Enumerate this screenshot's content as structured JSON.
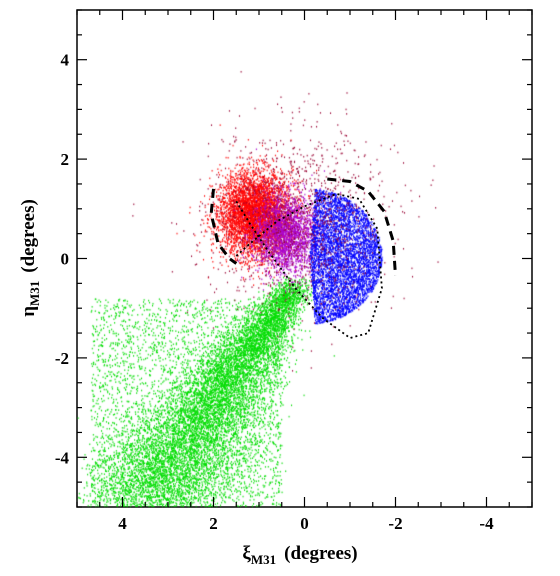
{
  "chart_data": {
    "type": "scatter",
    "xlabel": "ξM31 (degrees)",
    "ylabel": "ηM31 (degrees)",
    "xlabel_parts": {
      "symbol": "ξ",
      "subscript": "M31",
      "unit": "(degrees)"
    },
    "ylabel_parts": {
      "symbol": "η",
      "subscript": "M31",
      "unit": "(degrees)"
    },
    "xlim": [
      5,
      -5
    ],
    "ylim": [
      -5,
      5
    ],
    "x_ticks": [
      4,
      2,
      0,
      -2,
      -4
    ],
    "x_tick_labels": [
      "4",
      "2",
      "0",
      "-2",
      "-4"
    ],
    "y_ticks": [
      4,
      2,
      0,
      -2,
      -4
    ],
    "y_tick_labels": [
      "4",
      "2",
      "0",
      "-2",
      "-4"
    ],
    "grid": false,
    "legend": false,
    "series": [
      {
        "color": "#00dd00",
        "description_values": {
          "distribution": "elongated stream",
          "centroid": [
            1.8,
            -2.8
          ],
          "axis_endpoints": [
            [
              0.2,
              -0.5
            ],
            [
              3.6,
              -5.0
            ]
          ],
          "approx_points": 9000
        }
      },
      {
        "color": "#ff0000",
        "description_values": {
          "distribution": "dense clump",
          "centroid": [
            1.1,
            0.9
          ],
          "extent": [
            [
              2.1,
              -0.2
            ],
            [
              0.3,
              2.2
            ]
          ],
          "approx_points": 4500
        }
      },
      {
        "color": "#aa00cc",
        "description_values": {
          "distribution": "dense clump",
          "centroid": [
            0.4,
            0.5
          ],
          "extent": [
            [
              1.2,
              -1.0
            ],
            [
              -0.3,
              1.3
            ]
          ],
          "approx_points": 2200
        }
      },
      {
        "color": "#0000ff",
        "description_values": {
          "distribution": "fan",
          "centroid": [
            -0.9,
            0.1
          ],
          "extent": [
            [
              0.0,
              -1.3
            ],
            [
              -1.7,
              1.2
            ]
          ],
          "approx_points": 4500
        }
      },
      {
        "color": "#990033",
        "description_values": {
          "distribution": "sparse halo",
          "centroid": [
            0.2,
            0.8
          ],
          "extent": [
            [
              2.2,
              -2.0
            ],
            [
              -2.7,
              2.9
            ]
          ],
          "approx_points": 1200
        }
      }
    ],
    "contours": [
      {
        "style": "dashed",
        "color": "#000000",
        "points": [
          [
            2.0,
            1.4
          ],
          [
            2.05,
            0.9
          ],
          [
            1.9,
            0.3
          ],
          [
            1.65,
            0.0
          ],
          [
            1.5,
            -0.1
          ]
        ]
      },
      {
        "style": "dashed",
        "color": "#000000",
        "points": [
          [
            -0.5,
            1.6
          ],
          [
            -1.0,
            1.55
          ],
          [
            -1.4,
            1.35
          ],
          [
            -1.75,
            0.95
          ],
          [
            -1.95,
            0.35
          ],
          [
            -2.0,
            -0.35
          ]
        ]
      },
      {
        "style": "dotted",
        "color": "#000000",
        "points": [
          [
            1.5,
            1.15
          ],
          [
            1.2,
            0.7
          ],
          [
            0.8,
            0.15
          ],
          [
            0.2,
            -0.6
          ],
          [
            -0.4,
            -1.2
          ],
          [
            -1.0,
            -1.6
          ],
          [
            -1.4,
            -1.5
          ],
          [
            -1.7,
            -0.6
          ],
          [
            -1.6,
            0.6
          ],
          [
            -1.2,
            1.2
          ],
          [
            -0.7,
            1.3
          ],
          [
            0.0,
            1.05
          ],
          [
            0.6,
            0.75
          ],
          [
            1.2,
            0.3
          ],
          [
            1.5,
            0.05
          ]
        ]
      }
    ]
  }
}
